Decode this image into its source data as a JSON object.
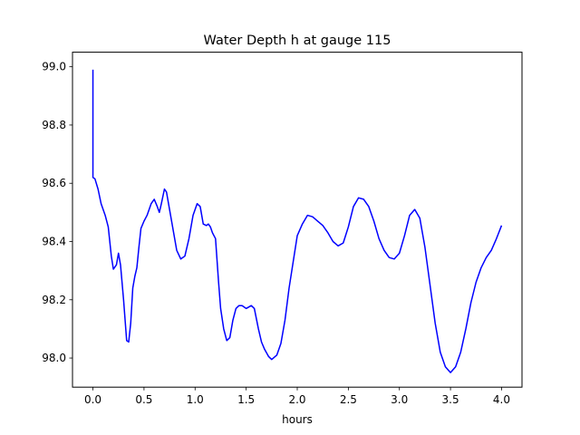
{
  "chart_data": {
    "type": "line",
    "title": "Water Depth h at gauge 115",
    "xlabel": "hours",
    "ylabel": "",
    "xlim": [
      -0.2,
      4.2
    ],
    "ylim": [
      97.9,
      99.05
    ],
    "xticks": [
      0.0,
      0.5,
      1.0,
      1.5,
      2.0,
      2.5,
      3.0,
      3.5,
      4.0
    ],
    "xtick_labels": [
      "0.0",
      "0.5",
      "1.0",
      "1.5",
      "2.0",
      "2.5",
      "3.0",
      "3.5",
      "4.0"
    ],
    "yticks": [
      98.0,
      98.2,
      98.4,
      98.6,
      98.8,
      99.0
    ],
    "ytick_labels": [
      "98.0",
      "98.2",
      "98.4",
      "98.6",
      "98.8",
      "99.0"
    ],
    "grid": false,
    "legend": "none",
    "series": [
      {
        "color": "#0000ff",
        "x": [
          0.0,
          0.0,
          0.02,
          0.05,
          0.08,
          0.12,
          0.15,
          0.18,
          0.2,
          0.23,
          0.25,
          0.27,
          0.3,
          0.33,
          0.35,
          0.37,
          0.39,
          0.41,
          0.43,
          0.45,
          0.47,
          0.5,
          0.53,
          0.57,
          0.6,
          0.63,
          0.65,
          0.67,
          0.7,
          0.72,
          0.75,
          0.78,
          0.82,
          0.86,
          0.9,
          0.94,
          0.98,
          1.02,
          1.05,
          1.08,
          1.11,
          1.13,
          1.15,
          1.17,
          1.2,
          1.23,
          1.25,
          1.28,
          1.31,
          1.34,
          1.37,
          1.4,
          1.43,
          1.46,
          1.5,
          1.55,
          1.58,
          1.62,
          1.65,
          1.68,
          1.72,
          1.75,
          1.8,
          1.84,
          1.88,
          1.92,
          1.96,
          2.0,
          2.05,
          2.1,
          2.15,
          2.2,
          2.25,
          2.3,
          2.35,
          2.4,
          2.45,
          2.5,
          2.55,
          2.6,
          2.65,
          2.7,
          2.75,
          2.8,
          2.85,
          2.9,
          2.95,
          3.0,
          3.05,
          3.1,
          3.15,
          3.2,
          3.25,
          3.3,
          3.35,
          3.4,
          3.45,
          3.5,
          3.55,
          3.6,
          3.65,
          3.7,
          3.75,
          3.8,
          3.85,
          3.9,
          3.95,
          4.0
        ],
        "y": [
          98.99,
          98.62,
          98.615,
          98.58,
          98.53,
          98.49,
          98.45,
          98.35,
          98.305,
          98.32,
          98.36,
          98.32,
          98.2,
          98.06,
          98.055,
          98.12,
          98.24,
          98.28,
          98.31,
          98.38,
          98.445,
          98.47,
          98.49,
          98.53,
          98.545,
          98.52,
          98.5,
          98.53,
          98.58,
          98.57,
          98.51,
          98.45,
          98.37,
          98.34,
          98.35,
          98.41,
          98.49,
          98.53,
          98.52,
          98.46,
          98.455,
          98.46,
          98.45,
          98.43,
          98.41,
          98.26,
          98.17,
          98.1,
          98.06,
          98.07,
          98.13,
          98.17,
          98.18,
          98.18,
          98.17,
          98.18,
          98.17,
          98.1,
          98.055,
          98.03,
          98.005,
          97.995,
          98.01,
          98.05,
          98.13,
          98.24,
          98.33,
          98.42,
          98.46,
          98.49,
          98.485,
          98.47,
          98.455,
          98.43,
          98.4,
          98.385,
          98.395,
          98.45,
          98.52,
          98.55,
          98.545,
          98.52,
          98.47,
          98.41,
          98.37,
          98.345,
          98.34,
          98.36,
          98.42,
          98.49,
          98.51,
          98.48,
          98.38,
          98.25,
          98.12,
          98.02,
          97.97,
          97.95,
          97.97,
          98.02,
          98.1,
          98.19,
          98.26,
          98.31,
          98.345,
          98.37,
          98.41,
          98.455
        ]
      }
    ]
  }
}
